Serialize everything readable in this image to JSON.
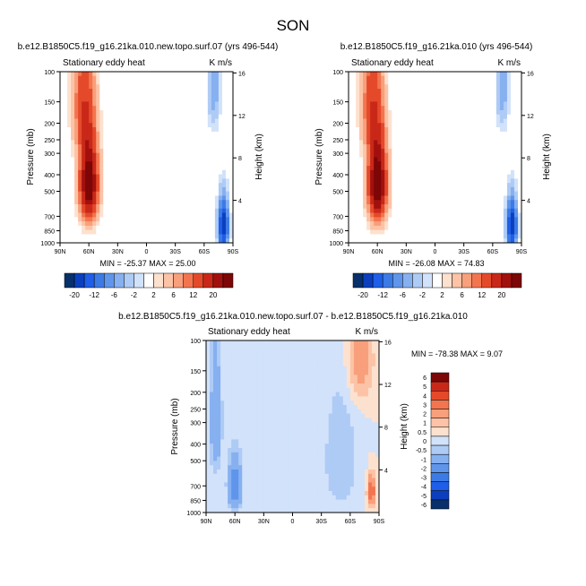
{
  "figure": {
    "title": "SON"
  },
  "palettes": {
    "top": [
      "#08306b",
      "#0b3fbe",
      "#1f5ee8",
      "#3c7be6",
      "#5f95eb",
      "#86b0f0",
      "#aecbf5",
      "#d1e2fa",
      "#ffffff",
      "#fde1cf",
      "#fcc3a6",
      "#f89f7b",
      "#f3754f",
      "#e44a2a",
      "#c92818",
      "#a2100e",
      "#7d0606"
    ],
    "diff": [
      "#08306b",
      "#0b3fbe",
      "#1f5ee8",
      "#3c7be6",
      "#5f95eb",
      "#86b0f0",
      "#aecbf5",
      "#d1e2fa",
      "#fde1cf",
      "#fcc3a6",
      "#f89f7b",
      "#f3754f",
      "#e44a2a",
      "#c92818",
      "#7d0606"
    ]
  },
  "chart_data": [
    {
      "type": "heatmap",
      "title": "b.e12.B1850C5.f19_g16.21ka.010.new.topo.surf.07 (yrs 496-544)",
      "left_label": "Stationary eddy heat",
      "right_label": "K m/s",
      "xlabel": "",
      "ylabel": "Pressure (mb)",
      "ylabel_right": "Height (km)",
      "x_ticks": [
        "90N",
        "60N",
        "30N",
        "0",
        "30S",
        "60S",
        "90S"
      ],
      "y_ticks": [
        "100",
        "150",
        "200",
        "250",
        "300",
        "400",
        "500",
        "700",
        "850",
        "1000"
      ],
      "y_ticks_right": [
        "16",
        "12",
        "8",
        "4"
      ],
      "ylim": [
        1000,
        100
      ],
      "min": -25.37,
      "max": 25.0,
      "stats_text": "MIN = -25.37  MAX =  25.00",
      "colorbar_labels": [
        "-20",
        "-12",
        "-6",
        "-2",
        "2",
        "6",
        "12",
        "20"
      ],
      "features": [
        {
          "lat": 60,
          "p": 450,
          "value": 25,
          "spread_lat": 9,
          "spread_p": 250,
          "note": "main warm core"
        },
        {
          "lat": 67,
          "p": 150,
          "value": 8,
          "spread_lat": 10,
          "spread_p": 120,
          "note": "upper extension"
        },
        {
          "lat": -80,
          "p": 800,
          "value": -20,
          "spread_lat": 5,
          "spread_p": 250,
          "note": "polar cold"
        },
        {
          "lat": -70,
          "p": 120,
          "value": -6,
          "spread_lat": 6,
          "spread_p": 80,
          "note": "upper cold"
        }
      ]
    },
    {
      "type": "heatmap",
      "title": "b.e12.B1850C5.f19_g16.21ka.010 (yrs 496-544)",
      "left_label": "Stationary eddy heat",
      "right_label": "K m/s",
      "xlabel": "",
      "ylabel": "Pressure (mb)",
      "ylabel_right": "Height (km)",
      "x_ticks": [
        "90N",
        "60N",
        "30N",
        "0",
        "30S",
        "60S",
        "90S"
      ],
      "y_ticks": [
        "100",
        "150",
        "200",
        "250",
        "300",
        "400",
        "500",
        "700",
        "850",
        "1000"
      ],
      "y_ticks_right": [
        "16",
        "12",
        "8",
        "4"
      ],
      "ylim": [
        1000,
        100
      ],
      "min": -26.08,
      "max": 74.83,
      "stats_text": "MIN = -26.08  MAX =  74.83",
      "colorbar_labels": [
        "-20",
        "-12",
        "-6",
        "-2",
        "2",
        "6",
        "12",
        "20"
      ],
      "features": [
        {
          "lat": 60,
          "p": 450,
          "value": 26,
          "spread_lat": 9,
          "spread_p": 250,
          "note": "main warm core"
        },
        {
          "lat": 67,
          "p": 150,
          "value": 8,
          "spread_lat": 10,
          "spread_p": 120,
          "note": "upper extension"
        },
        {
          "lat": -80,
          "p": 800,
          "value": -20,
          "spread_lat": 5,
          "spread_p": 250,
          "note": "polar cold"
        },
        {
          "lat": -70,
          "p": 120,
          "value": -6,
          "spread_lat": 6,
          "spread_p": 80,
          "note": "upper cold"
        }
      ]
    },
    {
      "type": "heatmap",
      "title": "b.e12.B1850C5.f19_g16.21ka.010.new.topo.surf.07 - b.e12.B1850C5.f19_g16.21ka.010",
      "left_label": "Stationary eddy heat",
      "right_label": "K m/s",
      "xlabel": "",
      "ylabel": "Pressure (mb)",
      "ylabel_right": "Height (km)",
      "x_ticks": [
        "90N",
        "60N",
        "30N",
        "0",
        "30S",
        "60S",
        "90S"
      ],
      "y_ticks": [
        "100",
        "150",
        "200",
        "250",
        "300",
        "400",
        "500",
        "700",
        "850",
        "1000"
      ],
      "y_ticks_right": [
        "16",
        "12",
        "8",
        "4"
      ],
      "ylim": [
        1000,
        100
      ],
      "min": -78.38,
      "max": 9.07,
      "stats_text": "MIN = -78.38  MAX =   9.07",
      "colorbar_labels": [
        "6",
        "5",
        "4",
        "3",
        "2",
        "1",
        "0.5",
        "0",
        "-0.5",
        "-1",
        "-2",
        "-3",
        "-4",
        "-5",
        "-6"
      ],
      "features": [
        {
          "lat": 60,
          "p": 700,
          "value": -3,
          "spread_lat": 7,
          "spread_p": 250,
          "note": "low-level cold"
        },
        {
          "lat": 80,
          "p": 300,
          "value": -2,
          "spread_lat": 6,
          "spread_p": 250,
          "note": "polar cold"
        },
        {
          "lat": -70,
          "p": 130,
          "value": 1.5,
          "spread_lat": 14,
          "spread_p": 90,
          "note": "upper warm"
        },
        {
          "lat": -82,
          "p": 750,
          "value": 3,
          "spread_lat": 4,
          "spread_p": 150,
          "note": "polar warm"
        },
        {
          "lat": -50,
          "p": 500,
          "value": -1,
          "spread_lat": 18,
          "spread_p": 400,
          "note": "broad cold"
        }
      ]
    }
  ]
}
